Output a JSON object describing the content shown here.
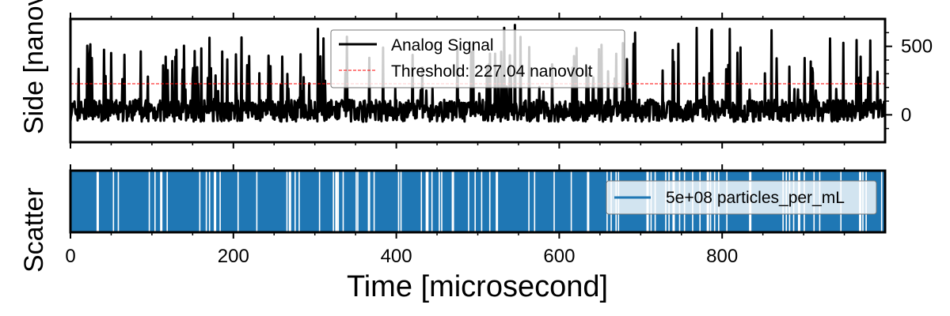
{
  "chart_data": [
    {
      "type": "line",
      "panel": "top",
      "ylabel": "Side [nanovolt]",
      "ylabel_overlap": "Scatter",
      "xlim": [
        0,
        1000
      ],
      "ylim": [
        -200,
        700
      ],
      "yaxis_side": "right",
      "y_ticks": [
        0,
        500
      ],
      "y_tick_labels": [
        "0",
        "500"
      ],
      "x_ticks": [
        0,
        200,
        400,
        600,
        800
      ],
      "threshold": 227.04,
      "series": [
        {
          "name": "Analog Signal",
          "color": "#000000",
          "style": "solid",
          "baseline": 30,
          "noise": 80,
          "peak_max": 700
        },
        {
          "name": "Threshold: 227.04 nanovolt",
          "color": "#ff0000",
          "style": "dashed",
          "value": 227.04
        }
      ],
      "legend": {
        "position": "top-center",
        "entries": [
          "Analog Signal",
          "Threshold: 227.04 nanovolt"
        ]
      }
    },
    {
      "type": "area",
      "panel": "bottom",
      "xlabel": "Time [microsecond]",
      "xlim": [
        0,
        1000
      ],
      "x_ticks": [
        0,
        200,
        400,
        600,
        800
      ],
      "x_tick_labels": [
        "0",
        "200",
        "400",
        "600",
        "800"
      ],
      "series": [
        {
          "name": "5e+08 particles_per_mL",
          "color": "#1f77b4"
        }
      ],
      "gaps_x": [
        32,
        52,
        58,
        96,
        103,
        110,
        118,
        158,
        166,
        170,
        176,
        183,
        205,
        228,
        265,
        268,
        275,
        280,
        305,
        322,
        325,
        328,
        334,
        350,
        352,
        365,
        372,
        402,
        405,
        430,
        436,
        438,
        443,
        452,
        455,
        468,
        488,
        496,
        504,
        514,
        522,
        562,
        569,
        593,
        614,
        634,
        658,
        663,
        669,
        672,
        707,
        712,
        717,
        730,
        734,
        739,
        747,
        753,
        763,
        772,
        781,
        785,
        790,
        795,
        805,
        833,
        874,
        878,
        882,
        887,
        893,
        900,
        912,
        919,
        945,
        968,
        972,
        976,
        995
      ],
      "legend": {
        "position": "right",
        "entries": [
          "5e+08 particles_per_mL"
        ]
      }
    }
  ]
}
